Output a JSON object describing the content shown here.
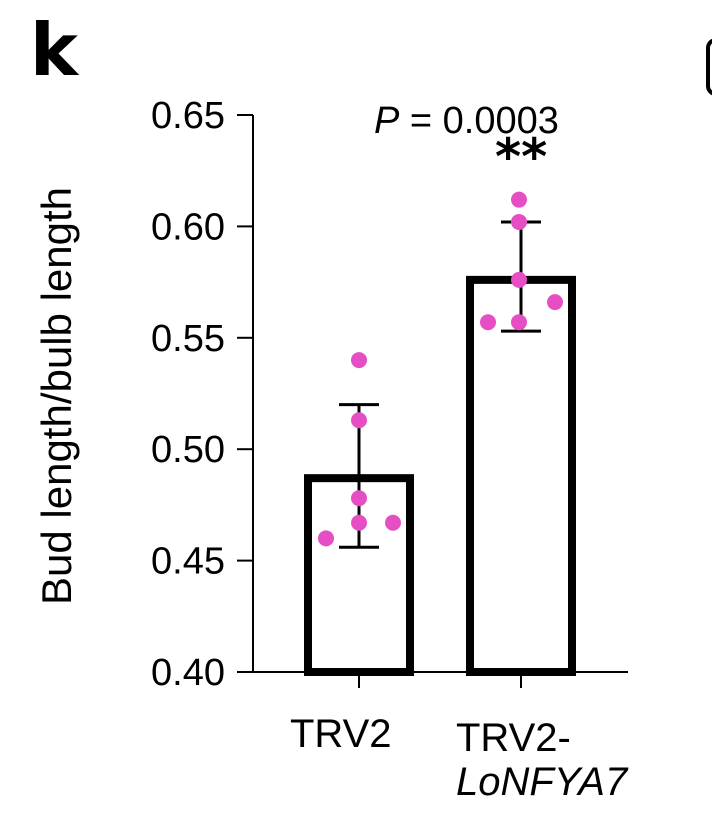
{
  "panel_label": "k",
  "chart_data": {
    "type": "bar",
    "categories": [
      "TRV2",
      "TRV2-LoNFYA7"
    ],
    "category_labels": [
      {
        "line1": "TRV2",
        "line2": ""
      },
      {
        "line1": "TRV2-",
        "line2": "LoNFYA7"
      }
    ],
    "values": [
      0.487,
      0.576
    ],
    "error_bars": {
      "upper": [
        0.52,
        0.602
      ],
      "lower": [
        0.456,
        0.553
      ]
    },
    "points": [
      [
        0.54,
        0.513,
        0.478,
        0.467,
        0.467,
        0.46
      ],
      [
        0.612,
        0.602,
        0.576,
        0.566,
        0.557,
        0.557
      ]
    ],
    "ylabel": "Bud length/bulb length",
    "ylim": [
      0.4,
      0.65
    ],
    "yticks": [
      "0.40",
      "0.45",
      "0.50",
      "0.55",
      "0.60",
      "0.65"
    ],
    "annotation": {
      "p_symbol": "P",
      "p_text": " = 0.0003",
      "significance": "**"
    },
    "point_color": "#e64fc4",
    "bar_fill": "#ffffff",
    "bar_edge": "#000000",
    "grid": false
  }
}
